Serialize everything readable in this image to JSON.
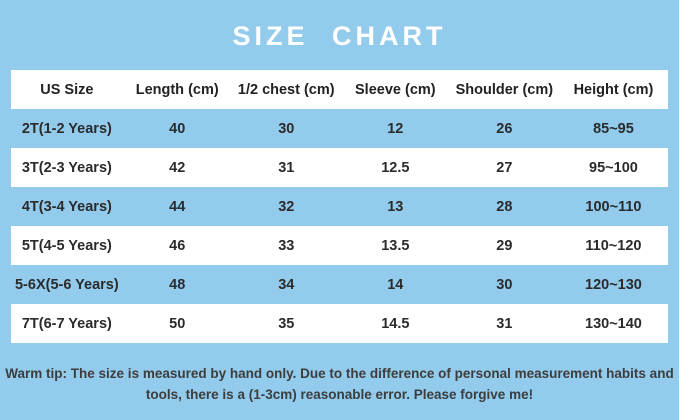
{
  "page": {
    "background_color": "#92cbec",
    "title": "SIZE CHART",
    "title_color": "#ffffff"
  },
  "table": {
    "row_alt_color": "#ffffff",
    "text_color": "#2b2b2b",
    "columns": [
      "US Size",
      "Length (cm)",
      "1/2 chest (cm)",
      "Sleeve (cm)",
      "Shoulder (cm)",
      "Height (cm)"
    ],
    "rows": [
      [
        "2T(1-2 Years)",
        "40",
        "30",
        "12",
        "26",
        "85~95"
      ],
      [
        "3T(2-3 Years)",
        "42",
        "31",
        "12.5",
        "27",
        "95~100"
      ],
      [
        "4T(3-4 Years)",
        "44",
        "32",
        "13",
        "28",
        "100~110"
      ],
      [
        "5T(4-5 Years)",
        "46",
        "33",
        "13.5",
        "29",
        "110~120"
      ],
      [
        "5-6X(5-6 Years)",
        "48",
        "34",
        "14",
        "30",
        "120~130"
      ],
      [
        "7T(6-7 Years)",
        "50",
        "35",
        "14.5",
        "31",
        "130~140"
      ]
    ]
  },
  "footer": {
    "warm_tip_line1": "Warm tip: The size is measured by hand only. Due to the difference of personal measurement habits and",
    "warm_tip_line2": "tools, there is a (1-3cm) reasonable error. Please forgive me!"
  }
}
